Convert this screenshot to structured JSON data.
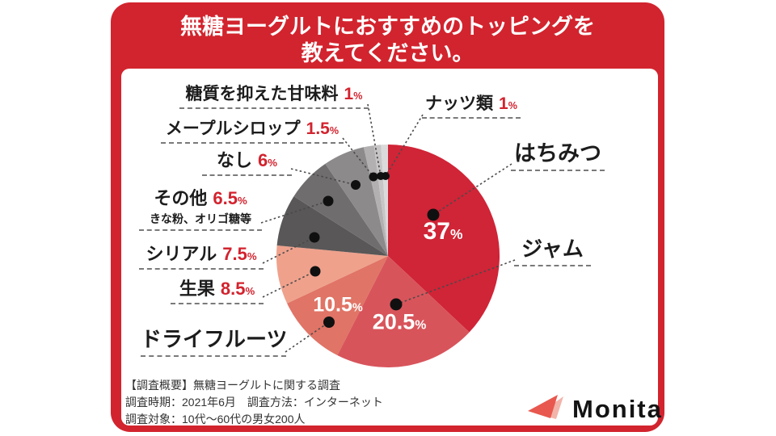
{
  "header": {
    "title_line1": "無糖ヨーグルトにおすすめのトッピングを",
    "title_line2": "教えてください。"
  },
  "chart_data": {
    "type": "pie",
    "title": "無糖ヨーグルトにおすすめのトッピングを教えてください。",
    "unit": "%",
    "start_angle_deg": 0,
    "direction": "clockwise",
    "segments": [
      {
        "id": "honey",
        "label": "はちみつ",
        "value": 37,
        "color": "#d02437",
        "value_label_inside": true
      },
      {
        "id": "jam",
        "label": "ジャム",
        "value": 20.5,
        "color": "#d8545b",
        "value_label_inside": true
      },
      {
        "id": "dried-fruit",
        "label": "ドライフルーツ",
        "value": 10.5,
        "color": "#e07466",
        "value_label_inside": true
      },
      {
        "id": "fresh-fruit",
        "label": "生果",
        "value": 8.5,
        "color": "#efa18c",
        "value_label_inside": false
      },
      {
        "id": "cereal",
        "label": "シリアル",
        "value": 7.5,
        "color": "#595757",
        "value_label_inside": false
      },
      {
        "id": "other",
        "label": "その他",
        "sublabel": "きな粉、オリゴ糖等",
        "value": 6.5,
        "color": "#6f6d6d",
        "value_label_inside": false
      },
      {
        "id": "none",
        "label": "なし",
        "value": 6,
        "color": "#8c8a8a",
        "value_label_inside": false
      },
      {
        "id": "maple-syrup",
        "label": "メープルシロップ",
        "value": 1.5,
        "color": "#b2b0b0",
        "value_label_inside": false
      },
      {
        "id": "low-sugar-sweetener",
        "label": "糖質を抑えた甘味料",
        "value": 1,
        "color": "#c7c5c5",
        "value_label_inside": false
      },
      {
        "id": "nuts",
        "label": "ナッツ類",
        "value": 1,
        "color": "#dbdada",
        "value_label_inside": false
      }
    ]
  },
  "footer": {
    "line1": "【調査概要】無糖ヨーグルトに関する調査",
    "line2": "調査時期：2021年6月　調査方法：インターネット",
    "line3": "調査対象：10代～60代の男女200人"
  },
  "brand": {
    "name": "Monita"
  },
  "colors": {
    "primary_red": "#d2242e",
    "percent_red": "#d2232e"
  }
}
